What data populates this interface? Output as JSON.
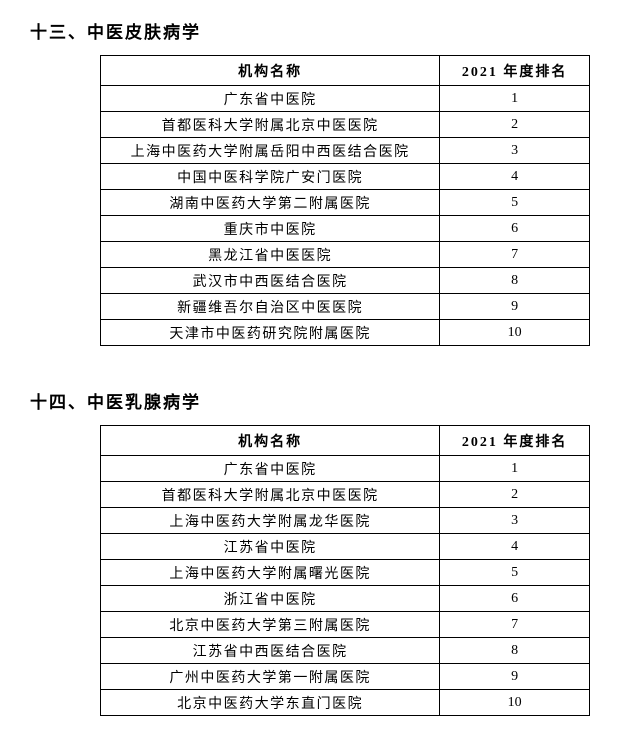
{
  "sections": [
    {
      "title": "十三、中医皮肤病学",
      "header_name": "机构名称",
      "header_rank": "2021 年度排名",
      "rows": [
        {
          "name": "广东省中医院",
          "rank": "1"
        },
        {
          "name": "首都医科大学附属北京中医医院",
          "rank": "2"
        },
        {
          "name": "上海中医药大学附属岳阳中西医结合医院",
          "rank": "3"
        },
        {
          "name": "中国中医科学院广安门医院",
          "rank": "4"
        },
        {
          "name": "湖南中医药大学第二附属医院",
          "rank": "5"
        },
        {
          "name": "重庆市中医院",
          "rank": "6"
        },
        {
          "name": "黑龙江省中医医院",
          "rank": "7"
        },
        {
          "name": "武汉市中西医结合医院",
          "rank": "8"
        },
        {
          "name": "新疆维吾尔自治区中医医院",
          "rank": "9"
        },
        {
          "name": "天津市中医药研究院附属医院",
          "rank": "10"
        }
      ]
    },
    {
      "title": "十四、中医乳腺病学",
      "header_name": "机构名称",
      "header_rank": "2021 年度排名",
      "rows": [
        {
          "name": "广东省中医院",
          "rank": "1"
        },
        {
          "name": "首都医科大学附属北京中医医院",
          "rank": "2"
        },
        {
          "name": "上海中医药大学附属龙华医院",
          "rank": "3"
        },
        {
          "name": "江苏省中医院",
          "rank": "4"
        },
        {
          "name": "上海中医药大学附属曙光医院",
          "rank": "5"
        },
        {
          "name": "浙江省中医院",
          "rank": "6"
        },
        {
          "name": "北京中医药大学第三附属医院",
          "rank": "7"
        },
        {
          "name": "江苏省中西医结合医院",
          "rank": "8"
        },
        {
          "name": "广州中医药大学第一附属医院",
          "rank": "9"
        },
        {
          "name": "北京中医药大学东直门医院",
          "rank": "10"
        }
      ]
    }
  ]
}
